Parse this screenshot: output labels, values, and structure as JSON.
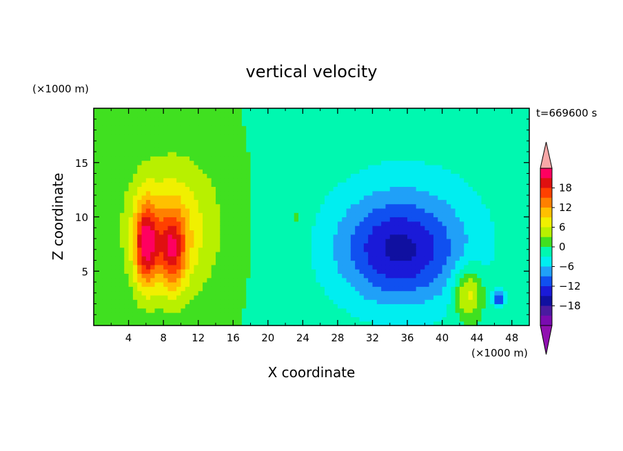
{
  "chart_data": {
    "type": "heatmap",
    "title": "vertical velocity",
    "xlabel": "X coordinate",
    "ylabel": "Z coordinate",
    "x_unit": "(×1000 m)",
    "y_unit": "(×1000 m)",
    "time_label": "t=669600 s",
    "xlim": [
      0,
      50
    ],
    "ylim": [
      0,
      20
    ],
    "x_ticks": [
      4,
      8,
      12,
      16,
      20,
      24,
      28,
      32,
      36,
      40,
      44,
      48
    ],
    "x_tick_labels": [
      "4",
      "8",
      "12",
      "16",
      "20",
      "24",
      "28",
      "32",
      "36",
      "40",
      "44",
      "48"
    ],
    "y_ticks": [
      5,
      10,
      15
    ],
    "y_tick_labels": [
      "5",
      "10",
      "15"
    ],
    "colorbar": {
      "levels": [
        -21,
        -18,
        -15,
        -12,
        -9,
        -6,
        -3,
        0,
        3,
        6,
        9,
        12,
        15,
        18,
        21
      ],
      "tick_values": [
        18,
        12,
        6,
        0,
        -6,
        -12,
        -18
      ],
      "tick_labels": [
        "18",
        "12",
        "6",
        "0",
        "−6",
        "−12",
        "−18"
      ],
      "colors": [
        "#7a0bb0",
        "#4a1aa0",
        "#1010a0",
        "#1a1ad8",
        "#1050f0",
        "#20a0f8",
        "#00eef0",
        "#00f8b0",
        "#40e020",
        "#b8f000",
        "#f0f000",
        "#ffc000",
        "#ff8000",
        "#ff4000",
        "#e01010",
        "#ff0060"
      ],
      "over_color": "#f8a8a8",
      "under_color": "#9010b0"
    },
    "features": [
      {
        "x": 6,
        "z": 7.5,
        "w": 2.0,
        "peak": 18,
        "sx": 1.3,
        "sz": 3.8
      },
      {
        "x": 9,
        "z": 7,
        "w": 1.5,
        "peak": 14,
        "sx": 1.6,
        "sz": 3.5
      },
      {
        "x": 9,
        "z": 9,
        "w": 1.0,
        "peak": 9,
        "sx": 5.5,
        "sz": 6.5
      },
      {
        "x": 43,
        "z": 3,
        "w": 1.0,
        "peak": 10,
        "sx": 1.6,
        "sz": 2.4
      },
      {
        "x": 35,
        "z": 7,
        "w": -1.0,
        "peak": -11,
        "sx": 6.5,
        "sz": 4.5
      },
      {
        "x": 36,
        "z": 8,
        "w": -1.0,
        "peak": -5,
        "sx": 12,
        "sz": 9
      },
      {
        "x": 46.5,
        "z": 2.5,
        "w": -1.0,
        "peak": -10,
        "sx": 0.7,
        "sz": 0.8
      },
      {
        "x": 23.5,
        "z": 10,
        "w": 1.0,
        "peak": 2,
        "sx": 1.0,
        "sz": 1.5
      }
    ]
  }
}
